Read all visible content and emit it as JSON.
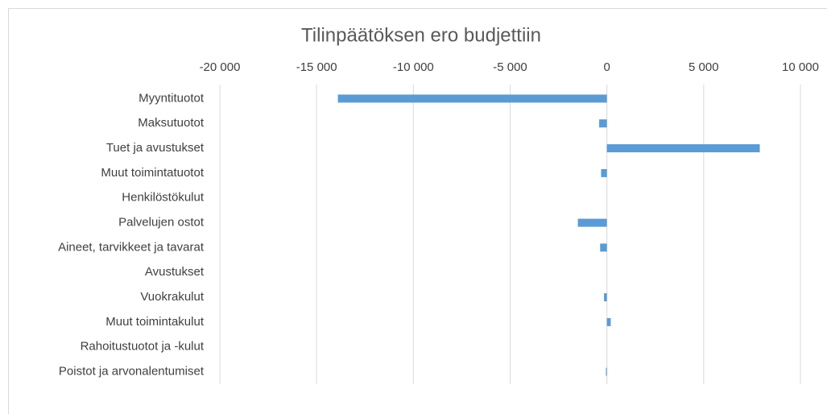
{
  "chart_data": {
    "type": "bar",
    "orientation": "horizontal",
    "title": "Tilinpäätöksen ero budjettiin",
    "categories": [
      "Myyntituotot",
      "Maksutuotot",
      "Tuet ja avustukset",
      "Muut toimintatuotot",
      "Henkilöstökulut",
      "Palvelujen ostot",
      "Aineet, tarvikkeet ja tavarat",
      "Avustukset",
      "Vuokrakulut",
      "Muut toimintakulut",
      "Rahoitustuotot ja -kulut",
      "Poistot ja arvonalentumiset"
    ],
    "values": [
      -13900,
      -400,
      7900,
      -300,
      0,
      -1500,
      -350,
      0,
      -150,
      200,
      0,
      -50
    ],
    "color": "#5b9bd5",
    "xlim": [
      -20000,
      10000
    ],
    "xticks": [
      {
        "value": -20000,
        "label": "-20 000"
      },
      {
        "value": -15000,
        "label": "-15 000"
      },
      {
        "value": -10000,
        "label": "-10 000"
      },
      {
        "value": -5000,
        "label": "-5 000"
      },
      0,
      {
        "value": 5000,
        "label": "5 000"
      },
      {
        "value": 10000,
        "label": "10 000"
      }
    ],
    "grid": true
  }
}
